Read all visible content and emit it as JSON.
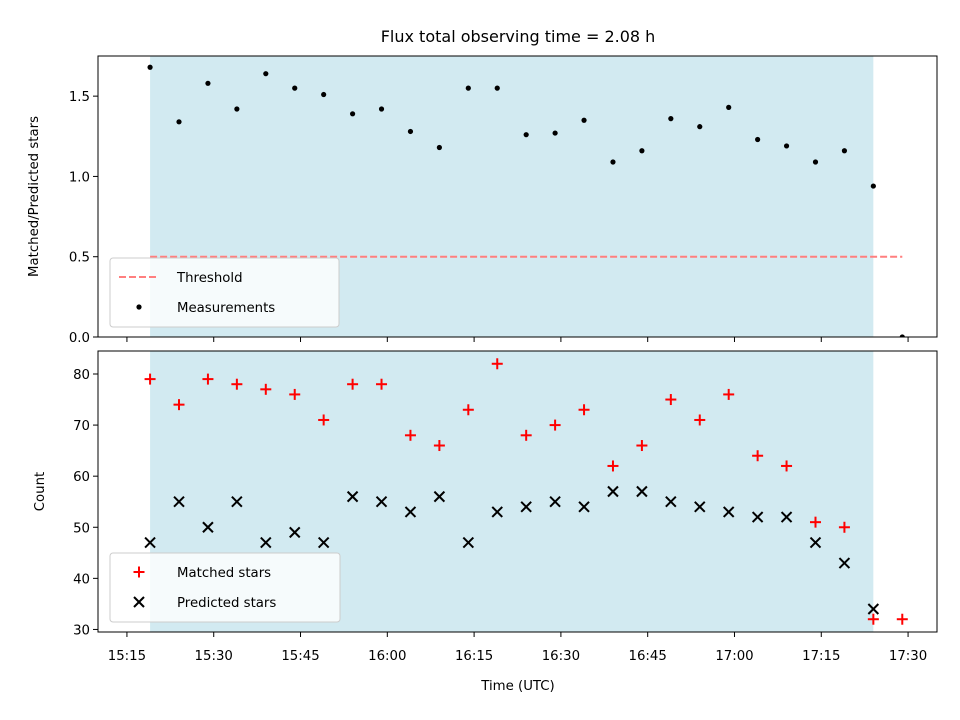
{
  "figure": {
    "title": "Flux total observing time = 2.08 h",
    "xlabel": "Time (UTC)",
    "x_ticks": [
      "15:15",
      "15:30",
      "15:45",
      "16:00",
      "16:15",
      "16:30",
      "16:45",
      "17:00",
      "17:15",
      "17:30"
    ]
  },
  "chart_data": [
    {
      "type": "scatter",
      "panel": "top",
      "title": "Flux total observing time = 2.08 h",
      "xlabel": "",
      "ylabel": "Matched/Predicted stars",
      "ylim": [
        0,
        1.75
      ],
      "xlim": [
        "15:10",
        "17:35"
      ],
      "y_ticks": [
        "0.0",
        "0.5",
        "1.0",
        "1.5"
      ],
      "shaded_region": {
        "start": "15:19",
        "end": "17:24",
        "color": "#add8e6"
      },
      "legend_position": "lower-left",
      "series": [
        {
          "name": "Threshold",
          "kind": "dashed-line",
          "color": "#ff7f7f",
          "x": [
            "15:19",
            "17:29"
          ],
          "values": [
            0.5,
            0.5
          ]
        },
        {
          "name": "Measurements",
          "kind": "dots",
          "color": "#000000",
          "x": [
            "15:19",
            "15:24",
            "15:29",
            "15:34",
            "15:39",
            "15:44",
            "15:49",
            "15:54",
            "15:59",
            "16:04",
            "16:09",
            "16:14",
            "16:19",
            "16:24",
            "16:29",
            "16:34",
            "16:39",
            "16:44",
            "16:49",
            "16:54",
            "16:59",
            "17:04",
            "17:09",
            "17:14",
            "17:19",
            "17:24",
            "17:29"
          ],
          "values": [
            1.68,
            1.34,
            1.58,
            1.42,
            1.64,
            1.55,
            1.51,
            1.39,
            1.42,
            1.28,
            1.18,
            1.55,
            1.55,
            1.26,
            1.27,
            1.35,
            1.09,
            1.16,
            1.36,
            1.31,
            1.43,
            1.23,
            1.19,
            1.09,
            1.16,
            0.94,
            0.0
          ]
        }
      ]
    },
    {
      "type": "scatter",
      "panel": "bottom",
      "xlabel": "Time (UTC)",
      "ylabel": "Count",
      "ylim": [
        29.5,
        84.5
      ],
      "xlim": [
        "15:10",
        "17:35"
      ],
      "y_ticks": [
        "30",
        "40",
        "50",
        "60",
        "70",
        "80"
      ],
      "shaded_region": {
        "start": "15:19",
        "end": "17:24",
        "color": "#add8e6"
      },
      "legend_position": "lower-left",
      "series": [
        {
          "name": "Matched stars",
          "marker": "plus",
          "color": "#ff0000",
          "x": [
            "15:19",
            "15:24",
            "15:29",
            "15:34",
            "15:39",
            "15:44",
            "15:49",
            "15:54",
            "15:59",
            "16:04",
            "16:09",
            "16:14",
            "16:19",
            "16:24",
            "16:29",
            "16:34",
            "16:39",
            "16:44",
            "16:49",
            "16:54",
            "16:59",
            "17:04",
            "17:09",
            "17:14",
            "17:19",
            "17:24",
            "17:29"
          ],
          "values": [
            79,
            74,
            79,
            78,
            77,
            76,
            71,
            78,
            78,
            68,
            66,
            73,
            82,
            68,
            70,
            73,
            62,
            66,
            75,
            71,
            76,
            64,
            62,
            51,
            50,
            32,
            32
          ]
        },
        {
          "name": "Predicted stars",
          "marker": "x",
          "color": "#000000",
          "x": [
            "15:19",
            "15:24",
            "15:29",
            "15:34",
            "15:39",
            "15:44",
            "15:49",
            "15:54",
            "15:59",
            "16:04",
            "16:09",
            "16:14",
            "16:19",
            "16:24",
            "16:29",
            "16:34",
            "16:39",
            "16:44",
            "16:49",
            "16:54",
            "16:59",
            "17:04",
            "17:09",
            "17:14",
            "17:19",
            "17:24"
          ],
          "values": [
            47,
            55,
            50,
            55,
            47,
            49,
            47,
            56,
            55,
            53,
            56,
            47,
            53,
            54,
            55,
            54,
            57,
            57,
            55,
            54,
            53,
            52,
            52,
            47,
            43,
            34
          ]
        }
      ]
    }
  ]
}
